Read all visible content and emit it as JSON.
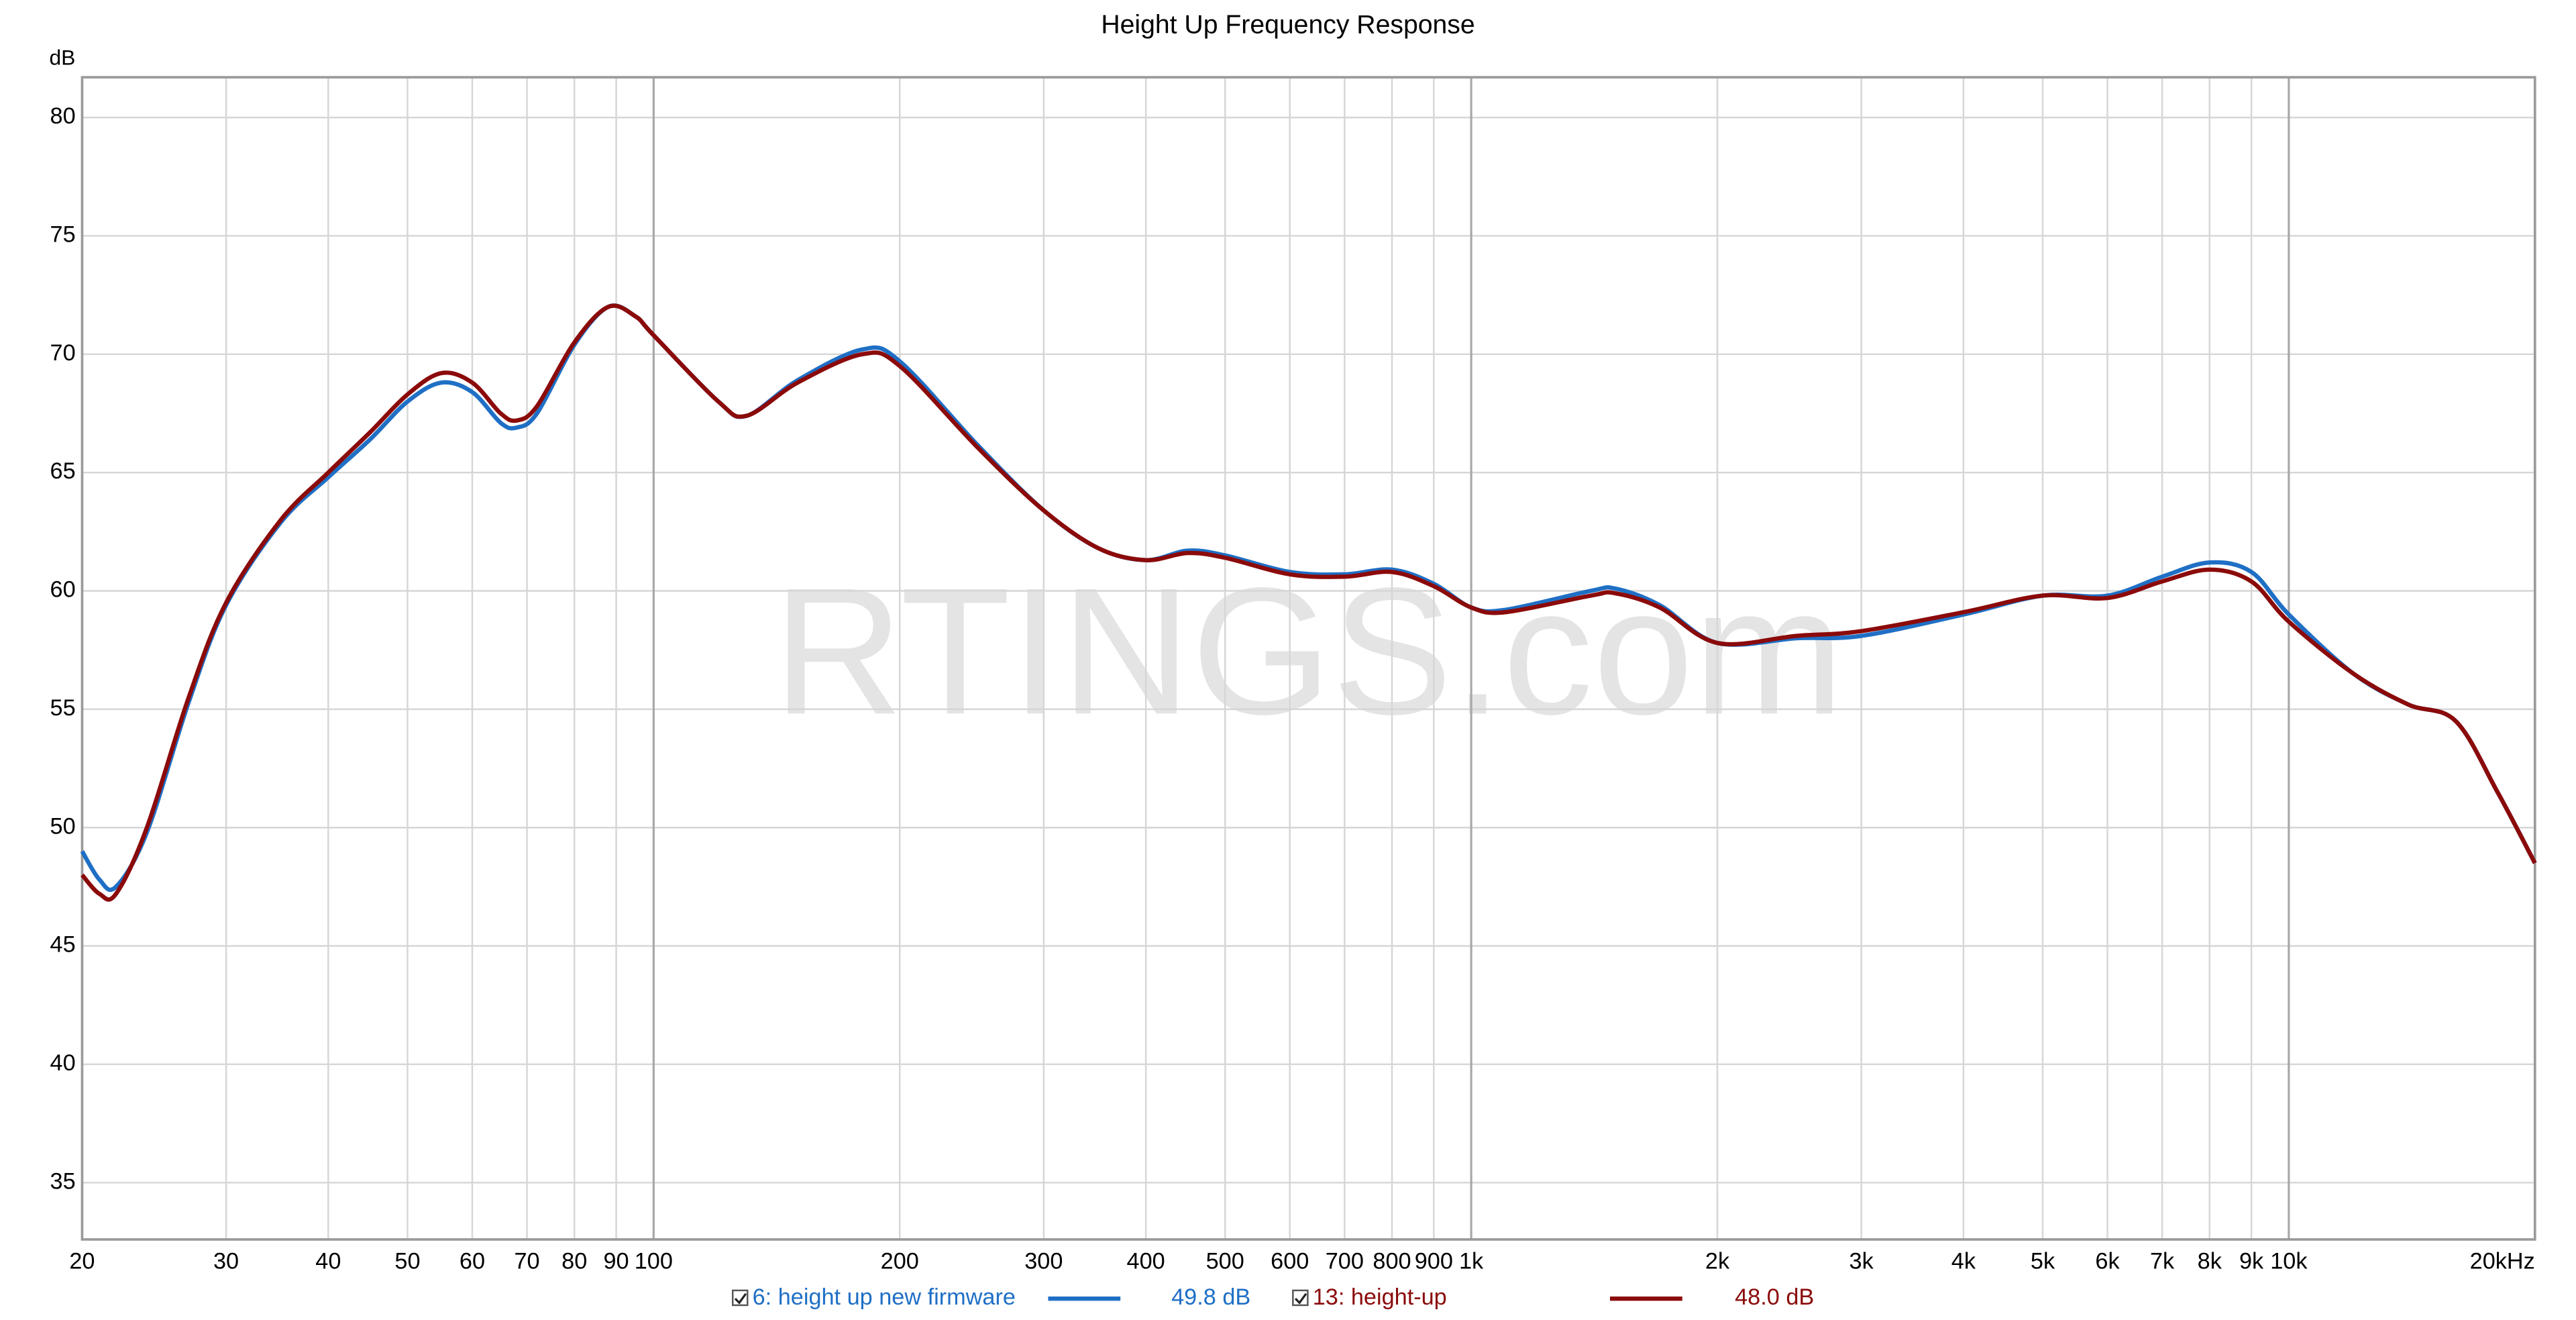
{
  "chart_data": {
    "type": "line",
    "title": "Height Up Frequency Response",
    "y_label": "dB",
    "watermark": "RTINGS.com",
    "x_scale": "log",
    "grid": true,
    "xlim": [
      20,
      20000
    ],
    "ylim": [
      32.6,
      81.7
    ],
    "xticks": [
      20,
      30,
      40,
      50,
      60,
      70,
      80,
      90,
      100,
      200,
      300,
      400,
      500,
      600,
      700,
      800,
      900,
      {
        "value": 1000,
        "label": "1k"
      },
      {
        "value": 2000,
        "label": "2k"
      },
      {
        "value": 3000,
        "label": "3k"
      },
      {
        "value": 4000,
        "label": "4k"
      },
      {
        "value": 5000,
        "label": "5k"
      },
      {
        "value": 6000,
        "label": "6k"
      },
      {
        "value": 7000,
        "label": "7k"
      },
      {
        "value": 8000,
        "label": "8k"
      },
      {
        "value": 9000,
        "label": "9k"
      },
      {
        "value": 10000,
        "label": "10k"
      },
      {
        "value": 20000,
        "label": "20kHz"
      }
    ],
    "yticks": [
      35,
      40,
      45,
      50,
      55,
      60,
      65,
      70,
      75,
      80
    ],
    "x": [
      20,
      21,
      22,
      24,
      27,
      30,
      35,
      40,
      45,
      50,
      55,
      60,
      65,
      68,
      72,
      80,
      88,
      95,
      100,
      120,
      130,
      150,
      180,
      200,
      250,
      300,
      350,
      400,
      450,
      500,
      600,
      700,
      800,
      900,
      1000,
      1100,
      1400,
      1500,
      1700,
      2000,
      2500,
      3000,
      4000,
      5000,
      6000,
      7000,
      8000,
      9000,
      10000,
      12000,
      14000,
      16000,
      18000,
      20000
    ],
    "series": [
      {
        "name": "6: height up new firmware",
        "legend_value": "49.8 dB",
        "color": "#1f6fc5",
        "values": [
          49.0,
          47.8,
          47.5,
          49.8,
          55.3,
          59.4,
          62.9,
          64.8,
          66.4,
          68.0,
          68.8,
          68.4,
          67.1,
          66.9,
          67.5,
          70.4,
          72.0,
          71.6,
          70.8,
          68.0,
          67.4,
          68.9,
          70.2,
          69.7,
          66.1,
          63.4,
          61.8,
          61.3,
          61.7,
          61.5,
          60.8,
          60.7,
          60.9,
          60.3,
          59.3,
          59.2,
          60.0,
          60.1,
          59.4,
          57.8,
          58.0,
          58.1,
          59.0,
          59.8,
          59.8,
          60.6,
          61.2,
          60.8,
          59.0,
          56.5,
          55.2,
          54.5,
          51.5,
          48.5
        ]
      },
      {
        "name": "13: height-up",
        "legend_value": "48.0 dB",
        "color": "#8b0a0a",
        "values": [
          48.0,
          47.2,
          47.2,
          50.0,
          55.5,
          59.5,
          63.0,
          65.0,
          66.7,
          68.3,
          69.2,
          68.8,
          67.5,
          67.2,
          67.8,
          70.5,
          72.0,
          71.6,
          70.8,
          68.0,
          67.4,
          68.8,
          70.0,
          69.5,
          66.0,
          63.4,
          61.8,
          61.3,
          61.6,
          61.4,
          60.7,
          60.6,
          60.8,
          60.2,
          59.3,
          59.1,
          59.8,
          59.9,
          59.3,
          57.8,
          58.1,
          58.3,
          59.1,
          59.8,
          59.7,
          60.4,
          60.9,
          60.4,
          58.7,
          56.5,
          55.2,
          54.5,
          51.5,
          48.5
        ]
      }
    ]
  }
}
